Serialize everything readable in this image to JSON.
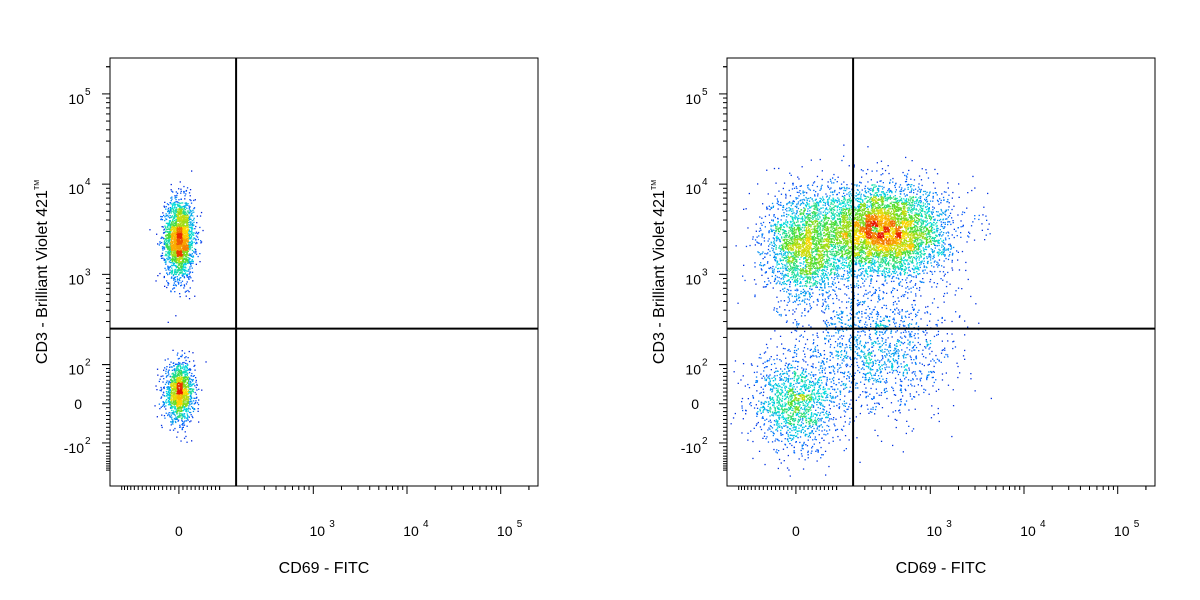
{
  "chart_data": [
    {
      "type": "scatter",
      "subtype": "flow-cytometry-density-plot",
      "xlabel": "CD69 - FITC",
      "ylabel": "CD3 - Brilliant Violet 421",
      "ylabel_mark": "TM",
      "x_scale": "biexponential",
      "y_scale": "biexponential",
      "x_tick_labels": [
        {
          "value": 0,
          "text": "0"
        },
        {
          "value": 1000,
          "base": "10",
          "exp": "3"
        },
        {
          "value": 10000,
          "base": "10",
          "exp": "4"
        },
        {
          "value": 100000,
          "base": "10",
          "exp": "5"
        }
      ],
      "y_tick_labels": [
        {
          "value": -100,
          "base": "-10",
          "exp": "2"
        },
        {
          "value": 0,
          "text": "0"
        },
        {
          "value": 100,
          "base": "10",
          "exp": "2"
        },
        {
          "value": 1000,
          "base": "10",
          "exp": "3"
        },
        {
          "value": 10000,
          "base": "10",
          "exp": "4"
        },
        {
          "value": 100000,
          "base": "10",
          "exp": "5"
        }
      ],
      "xlim": [
        -200,
        250000
      ],
      "ylim": [
        -300,
        250000
      ],
      "quadrant_gate": {
        "x": 150,
        "y": 250
      },
      "populations": [
        {
          "x_center": 0,
          "y_center": 2500,
          "x_spread": 30,
          "y_spread_log": 0.22,
          "density": "high"
        },
        {
          "x_center": 0,
          "y_center": 30,
          "x_spread": 30,
          "y_spread": 60,
          "density": "medium"
        }
      ]
    },
    {
      "type": "scatter",
      "subtype": "flow-cytometry-density-plot",
      "xlabel": "CD69 - FITC",
      "ylabel": "CD3 - Brilliant Violet 421",
      "ylabel_mark": "TM",
      "x_scale": "biexponential",
      "y_scale": "biexponential",
      "x_tick_labels": [
        {
          "value": 0,
          "text": "0"
        },
        {
          "value": 1000,
          "base": "10",
          "exp": "3"
        },
        {
          "value": 10000,
          "base": "10",
          "exp": "4"
        },
        {
          "value": 100000,
          "base": "10",
          "exp": "5"
        }
      ],
      "y_tick_labels": [
        {
          "value": -100,
          "base": "-10",
          "exp": "2"
        },
        {
          "value": 0,
          "text": "0"
        },
        {
          "value": 100,
          "base": "10",
          "exp": "2"
        },
        {
          "value": 1000,
          "base": "10",
          "exp": "3"
        },
        {
          "value": 10000,
          "base": "10",
          "exp": "4"
        },
        {
          "value": 100000,
          "base": "10",
          "exp": "5"
        }
      ],
      "xlim": [
        -200,
        250000
      ],
      "ylim": [
        -300,
        250000
      ],
      "quadrant_gate": {
        "x": 150,
        "y": 250
      },
      "populations": [
        {
          "x_center": 300,
          "y_center": 3000,
          "x_spread_log": 0.35,
          "y_spread_log": 0.25,
          "density": "very high"
        },
        {
          "x_center": 20,
          "y_center": 2000,
          "x_spread": 80,
          "y_spread_log": 0.3,
          "density": "high"
        },
        {
          "x_center": 250,
          "y_center": 150,
          "x_spread_log": 0.4,
          "y_spread": 150,
          "density": "medium"
        },
        {
          "x_center": 0,
          "y_center": 0,
          "x_spread": 90,
          "y_spread": 100,
          "density": "medium"
        }
      ]
    }
  ]
}
